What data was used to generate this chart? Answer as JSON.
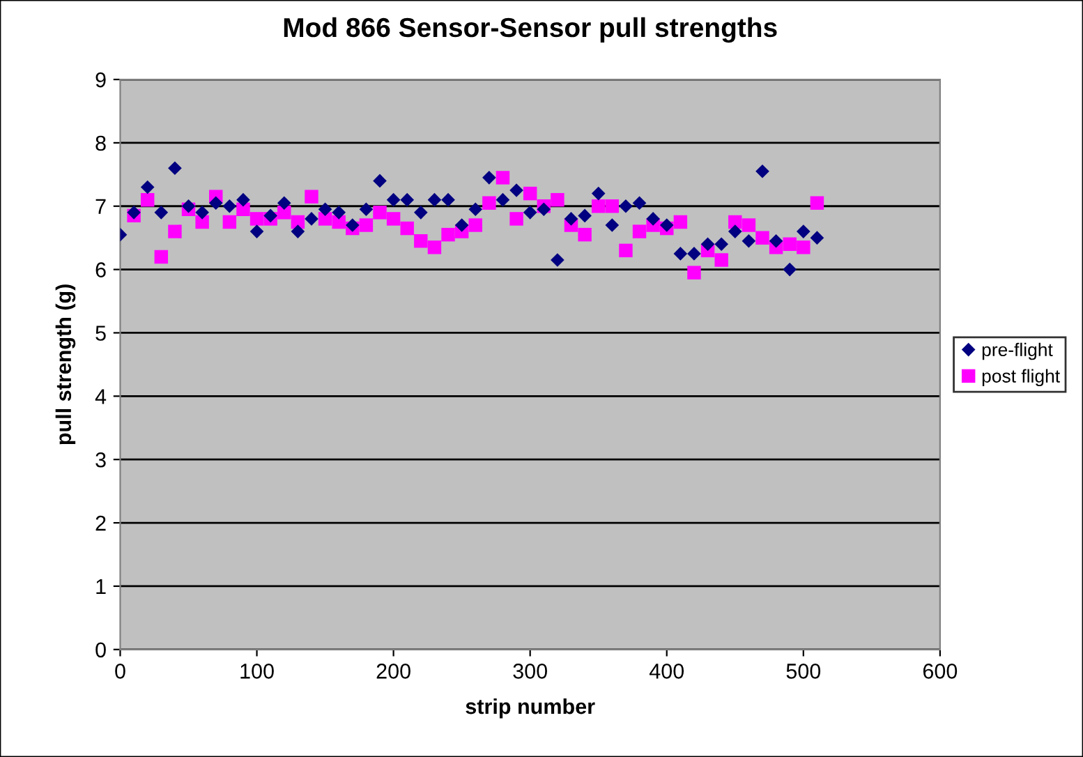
{
  "chart_data": {
    "type": "scatter",
    "title": "Mod 866 Sensor-Sensor pull strengths",
    "xlabel": "strip number",
    "ylabel": "pull strength (g)",
    "xlim": [
      0,
      600
    ],
    "xticks": [
      0,
      100,
      200,
      300,
      400,
      500,
      600
    ],
    "ylim": [
      0,
      9
    ],
    "yticks": [
      0,
      1,
      2,
      3,
      4,
      5,
      6,
      7,
      8,
      9
    ],
    "grid": "y",
    "legend": "right",
    "series": [
      {
        "name": "pre-flight",
        "color": "#000080",
        "marker": "diamond",
        "x": [
          0,
          10,
          20,
          30,
          40,
          50,
          60,
          70,
          80,
          90,
          100,
          110,
          120,
          130,
          140,
          150,
          160,
          170,
          180,
          190,
          200,
          210,
          220,
          230,
          240,
          250,
          260,
          270,
          280,
          290,
          300,
          310,
          320,
          330,
          340,
          350,
          360,
          370,
          380,
          390,
          400,
          410,
          420,
          430,
          440,
          450,
          460,
          470,
          480,
          490,
          500,
          510
        ],
        "values": [
          6.55,
          6.9,
          7.3,
          6.9,
          7.6,
          7.0,
          6.9,
          7.05,
          7.0,
          7.1,
          6.6,
          6.85,
          7.05,
          6.6,
          6.8,
          6.95,
          6.9,
          6.7,
          6.95,
          7.4,
          7.1,
          7.1,
          6.9,
          7.1,
          7.1,
          6.7,
          6.95,
          7.45,
          7.1,
          7.25,
          6.9,
          6.95,
          6.15,
          6.8,
          6.85,
          7.2,
          6.7,
          7.0,
          7.05,
          6.8,
          6.7,
          6.25,
          6.25,
          6.4,
          6.4,
          6.6,
          6.45,
          7.55,
          6.45,
          6.0,
          6.6,
          6.5
        ]
      },
      {
        "name": "post flight",
        "color": "#ff00ff",
        "marker": "square",
        "x": [
          10,
          20,
          30,
          40,
          50,
          60,
          70,
          80,
          90,
          100,
          110,
          120,
          130,
          140,
          150,
          160,
          170,
          180,
          190,
          200,
          210,
          220,
          230,
          240,
          250,
          260,
          270,
          280,
          290,
          300,
          310,
          320,
          330,
          340,
          350,
          360,
          370,
          380,
          390,
          400,
          410,
          420,
          430,
          440,
          450,
          460,
          470,
          480,
          490,
          500,
          510
        ],
        "values": [
          6.85,
          7.1,
          6.2,
          6.6,
          6.95,
          6.75,
          7.15,
          6.75,
          6.95,
          6.8,
          6.8,
          6.9,
          6.75,
          7.15,
          6.8,
          6.75,
          6.65,
          6.7,
          6.9,
          6.8,
          6.65,
          6.45,
          6.35,
          6.55,
          6.6,
          6.7,
          7.05,
          7.45,
          6.8,
          7.2,
          7.0,
          7.1,
          6.7,
          6.55,
          7.0,
          7.0,
          6.3,
          6.6,
          6.7,
          6.65,
          6.75,
          5.95,
          6.3,
          6.15,
          6.75,
          6.7,
          6.5,
          6.35,
          6.4,
          6.35,
          7.05
        ]
      }
    ]
  }
}
